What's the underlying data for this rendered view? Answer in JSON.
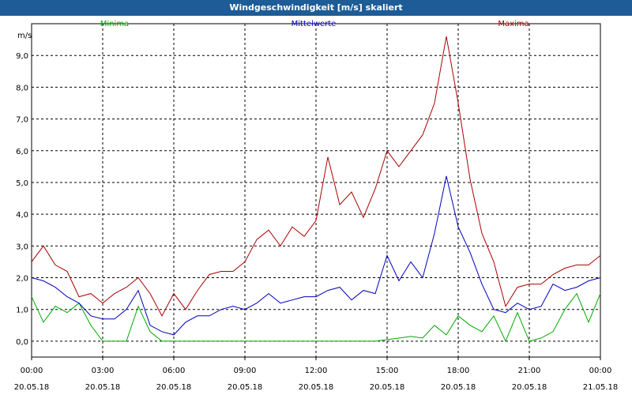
{
  "window": {
    "title": "Windgeschwindigkeit [m/s] skaliert"
  },
  "chart_data": {
    "type": "line",
    "title": "Windgeschwindigkeit [m/s] skaliert",
    "ylabel": "m/s",
    "ylim": [
      -0.5,
      10.0
    ],
    "yticks": [
      "0,0",
      "1,0",
      "2,0",
      "3,0",
      "4,0",
      "5,0",
      "6,0",
      "7,0",
      "8,0",
      "9,0"
    ],
    "xlim_hours": [
      0,
      24
    ],
    "xticks": [
      {
        "time": "00:00",
        "date": "20.05.18"
      },
      {
        "time": "03:00",
        "date": "20.05.18"
      },
      {
        "time": "06:00",
        "date": "20.05.18"
      },
      {
        "time": "09:00",
        "date": "20.05.18"
      },
      {
        "time": "12:00",
        "date": "20.05.18"
      },
      {
        "time": "15:00",
        "date": "20.05.18"
      },
      {
        "time": "18:00",
        "date": "20.05.18"
      },
      {
        "time": "21:00",
        "date": "20.05.18"
      },
      {
        "time": "00:00",
        "date": "21.05.18"
      }
    ],
    "grid": true,
    "x_hours": [
      0,
      0.5,
      1,
      1.5,
      2,
      2.5,
      3,
      3.5,
      4,
      4.5,
      5,
      5.5,
      6,
      6.5,
      7,
      7.5,
      8,
      8.5,
      9,
      9.5,
      10,
      10.5,
      11,
      11.5,
      12,
      12.5,
      13,
      13.5,
      14,
      14.5,
      15,
      15.5,
      16,
      16.5,
      17,
      17.5,
      18,
      18.5,
      19,
      19.5,
      20,
      20.5,
      21,
      21.5,
      22,
      22.5,
      23,
      23.5,
      24
    ],
    "series": [
      {
        "name": "Minima",
        "color": "#00aa00",
        "values": [
          1.4,
          0.6,
          1.1,
          0.9,
          1.2,
          0.5,
          0.0,
          0.0,
          0.0,
          1.1,
          0.3,
          0.0,
          0.0,
          0.0,
          0.0,
          0.0,
          0.0,
          0.0,
          0.0,
          0.0,
          0.0,
          0.0,
          0.0,
          0.0,
          0.0,
          0.0,
          0.0,
          0.0,
          0.0,
          0.0,
          0.05,
          0.1,
          0.15,
          0.1,
          0.5,
          0.2,
          0.8,
          0.5,
          0.3,
          0.8,
          0.0,
          0.9,
          0.0,
          0.1,
          0.3,
          1.0,
          1.5,
          0.6,
          1.5
        ]
      },
      {
        "name": "Mittelwerte",
        "color": "#0000bb",
        "values": [
          2.0,
          1.9,
          1.7,
          1.4,
          1.2,
          0.8,
          0.7,
          0.7,
          1.0,
          1.6,
          0.5,
          0.3,
          0.2,
          0.6,
          0.8,
          0.8,
          1.0,
          1.1,
          1.0,
          1.2,
          1.5,
          1.2,
          1.3,
          1.4,
          1.4,
          1.6,
          1.7,
          1.3,
          1.6,
          1.5,
          2.7,
          1.9,
          2.5,
          2.0,
          3.4,
          5.2,
          3.6,
          2.8,
          1.8,
          1.0,
          0.9,
          1.2,
          1.0,
          1.1,
          1.8,
          1.6,
          1.7,
          1.9,
          2.0
        ]
      },
      {
        "name": "Maxima",
        "color": "#aa0000",
        "values": [
          2.5,
          3.0,
          2.4,
          2.2,
          1.4,
          1.5,
          1.2,
          1.5,
          1.7,
          2.0,
          1.5,
          0.8,
          1.5,
          1.0,
          1.6,
          2.1,
          2.2,
          2.2,
          2.5,
          3.2,
          3.5,
          3.0,
          3.6,
          3.3,
          3.8,
          5.8,
          4.3,
          4.7,
          3.9,
          4.8,
          6.0,
          5.5,
          6.0,
          6.5,
          7.5,
          9.6,
          7.5,
          5.1,
          3.4,
          2.5,
          1.1,
          1.7,
          1.8,
          1.8,
          2.1,
          2.3,
          2.4,
          2.4,
          2.7
        ]
      }
    ]
  }
}
